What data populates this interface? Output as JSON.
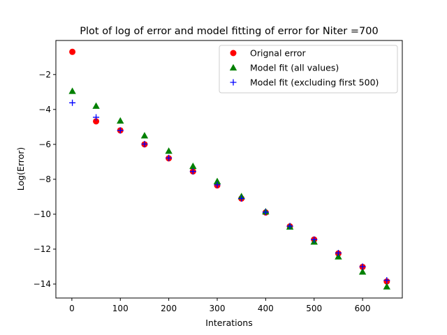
{
  "chart_data": {
    "type": "scatter",
    "title": "Plot of log of error and model fitting of error for Niter =700",
    "xlabel": "Interations",
    "ylabel": "Log(Error)",
    "xlim": [
      -33,
      682
    ],
    "ylim": [
      -14.8,
      -0.05
    ],
    "xticks": [
      0,
      100,
      200,
      300,
      400,
      500,
      600
    ],
    "yticks": [
      -14,
      -12,
      -10,
      -8,
      -6,
      -4,
      -2
    ],
    "ytick_labels": [
      "−14",
      "−12",
      "−10",
      "−8",
      "−6",
      "−4",
      "−2"
    ],
    "grid": false,
    "legend_position": "top-right",
    "x": [
      1,
      50,
      100,
      150,
      200,
      250,
      300,
      350,
      400,
      450,
      500,
      550,
      600,
      650
    ],
    "series": [
      {
        "name": "Orignal error",
        "marker": "circle",
        "color": "#ff0000",
        "values": [
          -0.7,
          -4.68,
          -5.2,
          -6.0,
          -6.8,
          -7.55,
          -8.35,
          -9.1,
          -9.9,
          -10.7,
          -11.45,
          -12.25,
          -13.02,
          -13.85
        ]
      },
      {
        "name": "Model fit (all values)",
        "marker": "triangle",
        "color": "#008000",
        "values": [
          -2.95,
          -3.8,
          -4.65,
          -5.5,
          -6.38,
          -7.25,
          -8.12,
          -8.98,
          -9.85,
          -10.72,
          -11.58,
          -12.43,
          -13.3,
          -14.15
        ]
      },
      {
        "name": "Model fit (excluding first 500)",
        "marker": "plus",
        "color": "#0000ff",
        "values": [
          -3.62,
          -4.45,
          -5.2,
          -5.98,
          -6.78,
          -7.55,
          -8.32,
          -9.1,
          -9.88,
          -10.68,
          -11.45,
          -12.22,
          -13.0,
          -13.78
        ]
      }
    ]
  }
}
